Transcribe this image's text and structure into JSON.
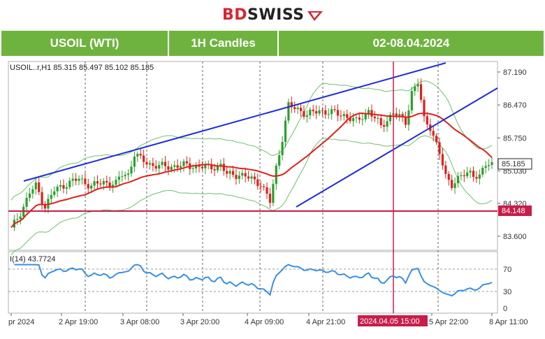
{
  "brand": {
    "part1": "BD",
    "part2": "SWISS"
  },
  "header": {
    "symbol": "USOIL (WTI)",
    "timeframe": "1H Candles",
    "dates": "02-08.04.2024"
  },
  "chart_data": {
    "type": "candlestick",
    "symbol_line": "USOIL..r,H1  85.315 85.497 85.102 85.185",
    "price_axis": {
      "min": 83.3,
      "max": 87.3,
      "ticks": [
        "87.190",
        "86.470",
        "85.750",
        "85.030",
        "84.320",
        "83.600"
      ]
    },
    "last_price_label": "85.185",
    "support_label": "84.148",
    "x_tick_labels": [
      "pr 2024",
      "2 Apr 19:00",
      "3 Apr 08:00",
      "3 Apr 20:00",
      "4 Apr 09:00",
      "4 Apr 21:00",
      "5 Apr 22:00",
      "8 Apr 11:00"
    ],
    "highlight_time_label": "2024.04.05 15:00",
    "rsi": {
      "label": "I(14) 43.7724",
      "ticks": [
        "70",
        "30",
        "0"
      ],
      "period": 14
    },
    "colors": {
      "up": "#2ca02c",
      "down": "#e0201b",
      "trend": "#1f2bd6",
      "ma": "#e0201b",
      "bands": "#6fbf6f",
      "rsi": "#3b8fe0",
      "level": "#c81d4a"
    }
  }
}
